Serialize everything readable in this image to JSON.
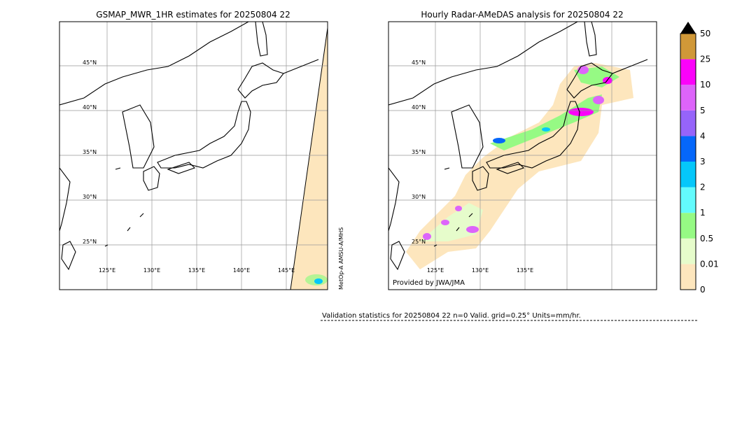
{
  "left_map": {
    "title": "GSMAP_MWR_1HR estimates for 20250804 22",
    "lat_labels": [
      "45°N",
      "40°N",
      "35°N",
      "30°N",
      "25°N"
    ],
    "lon_labels": [
      "125°E",
      "130°E",
      "135°E",
      "140°E",
      "145°E"
    ],
    "sensor_note": "MetOp-A AMSU-A/MHS"
  },
  "right_map": {
    "title": "Hourly Radar-AMeDAS analysis for 20250804 22",
    "lat_labels": [
      "45°N",
      "40°N",
      "35°N",
      "30°N",
      "25°N"
    ],
    "lon_labels": [
      "125°E",
      "130°E",
      "135°E"
    ],
    "credit": "Provided by JWA/JMA"
  },
  "colorbar": {
    "labels": [
      "0",
      "0.01",
      "0.5",
      "1",
      "2",
      "3",
      "4",
      "5",
      "10",
      "25",
      "50"
    ],
    "colors": [
      "#fde6bd",
      "#e6fccb",
      "#96fa84",
      "#63fbfd",
      "#05c7fa",
      "#0567fa",
      "#9664fa",
      "#dd64fa",
      "#fb02fa",
      "#d09838"
    ]
  },
  "validation": "Validation statistics for 20250804 22  n=0 Valid. grid=0.25° Units=mm/hr."
}
